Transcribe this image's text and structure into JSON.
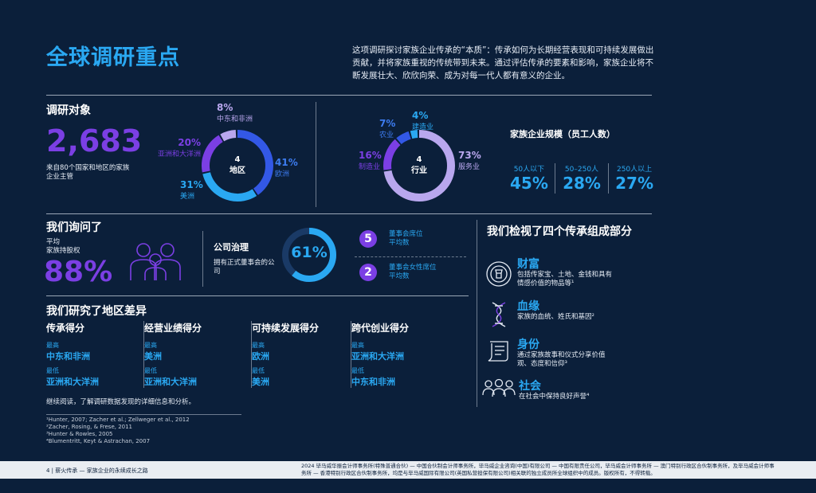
{
  "title": "全球调研重点",
  "intro": "这项调研探讨家族企业传承的“本质”：传承如何为长期经营表现和可持续发展做出贡献，并将家族重视的传统带到未来。通过评估传承的要素和影响，家族企业将不断发展壮大、欣欣向荣、成为对每一代人都有意义的企业。",
  "respondents": {
    "heading": "调研对象",
    "count": "2,683",
    "desc": "来自80个国家和地区的家族企业主管"
  },
  "regions": {
    "center_num": "4",
    "center_label": "地区",
    "slices": [
      {
        "label": "欧洲",
        "pct_text": "41%",
        "value": 41,
        "color": "#3358e6"
      },
      {
        "label": "美洲",
        "pct_text": "31%",
        "value": 31,
        "color": "#2aa8f2"
      },
      {
        "label": "亚洲和大洋洲",
        "pct_text": "20%",
        "value": 20,
        "color": "#7b3fe4"
      },
      {
        "label": "中东和非洲",
        "pct_text": "8%",
        "value": 8,
        "color": "#b9a7ee"
      }
    ]
  },
  "industries": {
    "center_num": "4",
    "center_label": "行业",
    "slices": [
      {
        "label": "服务业",
        "pct_text": "73%",
        "value": 73,
        "color": "#b9a7ee"
      },
      {
        "label": "制造业",
        "pct_text": "16%",
        "value": 16,
        "color": "#7b3fe4"
      },
      {
        "label": "农业",
        "pct_text": "7%",
        "value": 7,
        "color": "#3358e6"
      },
      {
        "label": "建造业",
        "pct_text": "4%",
        "value": 4,
        "color": "#2aa8f2"
      }
    ]
  },
  "size": {
    "heading": "家族企业规模（员工人数）",
    "items": [
      {
        "label": "50人以下",
        "value": "45%"
      },
      {
        "label": "50–250人",
        "value": "28%"
      },
      {
        "label": "250人以上",
        "value": "27%"
      }
    ]
  },
  "asked": {
    "heading": "我们询问了",
    "avg_label": "平均\n家族持股权",
    "avg_value": "88%",
    "gov_heading": "公司治理",
    "gov_desc": "拥有正式董事会的公司",
    "gov_value": "61%",
    "gov_fraction": 0.61,
    "board1_num": "5",
    "board1_label": "董事会席位\n平均数",
    "board2_num": "2",
    "board2_label": "董事会女性席位\n平均数"
  },
  "regional": {
    "heading": "我们研究了地区差异",
    "high_label": "最高",
    "low_label": "最低",
    "columns": [
      {
        "title": "传承得分",
        "high": "中东和非洲",
        "low": "亚洲和大洋洲"
      },
      {
        "title": "经营业绩得分",
        "high": "美洲",
        "low": "亚洲和大洋洲"
      },
      {
        "title": "可持续发展得分",
        "high": "欧洲",
        "low": "美洲"
      },
      {
        "title": "跨代创业得分",
        "high": "亚洲和大洋洲",
        "low": "中东和非洲"
      }
    ],
    "continue": "继续阅读，了解调研数据发现的详细信息和分析。"
  },
  "components": {
    "heading": "我们检视了四个传承组成部分",
    "items": [
      {
        "title": "财富",
        "desc": "包括传家宝、土地、金钱和具有情感价值的物品等¹",
        "icon": "wealth-icon"
      },
      {
        "title": "血缘",
        "desc": "家族的血统、姓氏和基因²",
        "icon": "dna-icon"
      },
      {
        "title": "身份",
        "desc": "通过家族故事和仪式分享价值观、态度和信仰³",
        "icon": "scroll-icon"
      },
      {
        "title": "社会",
        "desc": "在社会中保持良好声誉⁴",
        "icon": "people-icon"
      }
    ]
  },
  "footnotes": [
    "¹Hunter, 2007; Zacher et al.; Zellweger et al., 2012",
    "²Zacher, Rosing, & Frese, 2011",
    "³Hunter & Rowles, 2005",
    "⁴Blumentritt, Keyt & Astrachan, 2007"
  ],
  "footer": {
    "left": "4 | 薪火传承 — 家族企业的永续成长之路",
    "right": "2024 毕马威华振会计师事务所(特殊普通合伙) — 中国合伙制会计师事务所，毕马威企业咨询(中国)有限公司 — 中国有限责任公司，毕马威会计师事务所 — 澳门特别行政区合伙制事务所，及毕马威会计师事务所 — 香港特别行政区合伙制事务所，均是与毕马威国际有限公司(英国私营担保有限公司)相关联的独立成员所全球组织中的成员。版权所有，不得转载。"
  }
}
